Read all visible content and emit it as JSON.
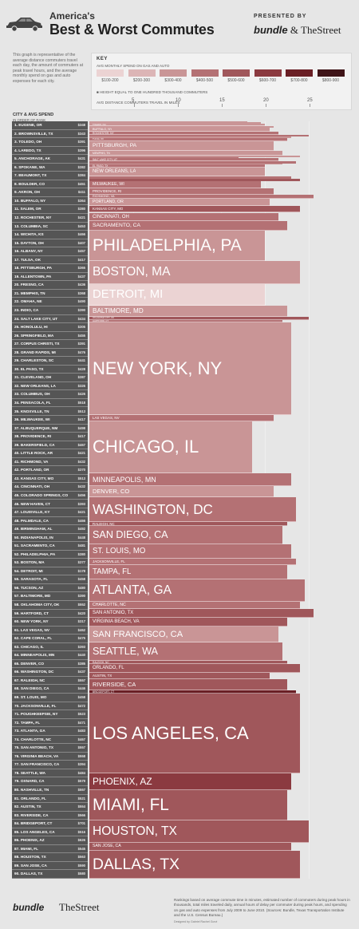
{
  "header": {
    "title_line1": "America's",
    "title_line2": "Best & Worst Commutes",
    "presented_by": "PRESENTED BY",
    "sponsor1": "bundle",
    "sponsor_amp": "&",
    "sponsor2": "TheStreet"
  },
  "description": "This graph is representative of the average distance commuters travel each day, the amount of commuters at peak travel hours, and the average monthly spend on gas and auto expenses for each city.",
  "key": {
    "heading": "KEY",
    "spend_label": "AVG MONTHLY SPEND ON GAS AND AUTO",
    "swatches": [
      {
        "label": "$100-200",
        "color": "#ebd3d3"
      },
      {
        "label": "$200-300",
        "color": "#dcb5b6"
      },
      {
        "label": "$300-400",
        "color": "#c99596"
      },
      {
        "label": "$400-500",
        "color": "#b47174"
      },
      {
        "label": "$500-600",
        "color": "#a0575b"
      },
      {
        "label": "$600-700",
        "color": "#8b3a40"
      },
      {
        "label": "$700-800",
        "color": "#6a1f25"
      },
      {
        "label": "$800-900",
        "color": "#3f1418"
      }
    ],
    "height_note": "HEIGHT EQUAL TO ONE HUNDRED THOUSAND COMMUTERS",
    "distance_note": "AVG DISTANCE COMMUTERS TRAVEL IN MILES",
    "ticks": [
      "5",
      "10",
      "15",
      "20",
      "25"
    ]
  },
  "list": {
    "heading": "CITY & AVG SPEND",
    "subheading": "IN ORDER OF RANK",
    "cities": [
      {
        "name": "1. EUGENE, OR",
        "spend": "$348"
      },
      {
        "name": "2. BROWNSVILLE, TX",
        "spend": "$343"
      },
      {
        "name": "3. TOLEDO, OH",
        "spend": "$391"
      },
      {
        "name": "4. LAREDO, TX",
        "spend": "$396"
      },
      {
        "name": "5. ANCHORAGE, AK",
        "spend": "$431"
      },
      {
        "name": "6. SPOKANE, WA",
        "spend": "$382"
      },
      {
        "name": "7. BEAUMONT, TX",
        "spend": "$384"
      },
      {
        "name": "8. BOULDER, CO",
        "spend": "$451"
      },
      {
        "name": "9. AKRON, OH",
        "spend": "$411"
      },
      {
        "name": "10. BUFFALO, NY",
        "spend": "$364"
      },
      {
        "name": "11. SALEM, OR",
        "spend": "$380"
      },
      {
        "name": "12. ROCHESTER, NY",
        "spend": "$421"
      },
      {
        "name": "13. COLUMBIA, SC",
        "spend": "$453"
      },
      {
        "name": "14. WICHITA, KS",
        "spend": "$466"
      },
      {
        "name": "15. DAYTON, OH",
        "spend": "$407"
      },
      {
        "name": "16. ALBANY, NY",
        "spend": "$457"
      },
      {
        "name": "17. TULSA, OK",
        "spend": "$417"
      },
      {
        "name": "18. PITTSBURGH, PA",
        "spend": "$365"
      },
      {
        "name": "19. ALLENTOWN, PA",
        "spend": "$437"
      },
      {
        "name": "20. FRESNO, CA",
        "spend": "$436"
      },
      {
        "name": "21. MEMPHIS, TN",
        "spend": "$368"
      },
      {
        "name": "22. OMAHA, NE",
        "spend": "$490"
      },
      {
        "name": "23. INDIO, CA",
        "spend": "$390"
      },
      {
        "name": "24. SALT LAKE CITY, UT",
        "spend": "$434"
      },
      {
        "name": "25. HONOLULU, HI",
        "spend": "$305"
      },
      {
        "name": "26. SPRINGFIELD, MA",
        "spend": "$455"
      },
      {
        "name": "27. CORPUS CHRISTI, TX",
        "spend": "$391"
      },
      {
        "name": "28. GRAND RAPIDS, MI",
        "spend": "$476"
      },
      {
        "name": "29. CHARLESTON, SC",
        "spend": "$441"
      },
      {
        "name": "30. EL PASO, TX",
        "spend": "$428"
      },
      {
        "name": "31. CLEVELAND, OH",
        "spend": "$387"
      },
      {
        "name": "32. NEW ORLEANS, LA",
        "spend": "$326"
      },
      {
        "name": "33. COLUMBUS, OH",
        "spend": "$426"
      },
      {
        "name": "34. PENSACOLA, FL",
        "spend": "$518"
      },
      {
        "name": "35. KNOXVILLE, TN",
        "spend": "$513"
      },
      {
        "name": "36. MILWAUKEE, WI",
        "spend": "$417"
      },
      {
        "name": "37. ALBUQUERQUE, NM",
        "spend": "$498"
      },
      {
        "name": "38. PROVIDENCE, RI",
        "spend": "$417"
      },
      {
        "name": "39. BAKERSFIELD, CA",
        "spend": "$467"
      },
      {
        "name": "40. LITTLE ROCK, AR",
        "spend": "$421"
      },
      {
        "name": "41. RICHMOND, VA",
        "spend": "$432"
      },
      {
        "name": "42. PORTLAND, OR",
        "spend": "$370"
      },
      {
        "name": "43. KANSAS CITY, MO",
        "spend": "$513"
      },
      {
        "name": "44. CINCINNATI, OH",
        "spend": "$432"
      },
      {
        "name": "45. COLORADO SPRINGS, CO",
        "spend": "$456"
      },
      {
        "name": "46. NEW HAVEN, CT",
        "spend": "$393"
      },
      {
        "name": "47. LOUISVILLE, KY",
        "spend": "$421"
      },
      {
        "name": "48. PALMDALE, CA",
        "spend": "$466"
      },
      {
        "name": "49. BIRMINGHAM, AL",
        "spend": "$492"
      },
      {
        "name": "50. INDIANAPOLIS, IN",
        "spend": "$448"
      },
      {
        "name": "51. SACRAMENTO, CA",
        "spend": "$481"
      },
      {
        "name": "52. PHILADELPHIA, PA",
        "spend": "$380"
      },
      {
        "name": "53. BOSTON, MA",
        "spend": "$377"
      },
      {
        "name": "54. DETROIT, MI",
        "spend": "$178"
      },
      {
        "name": "55. SARASOTA, FL",
        "spend": "$458"
      },
      {
        "name": "56. TUCSON, AZ",
        "spend": "$480"
      },
      {
        "name": "57. BALTIMORE, MD",
        "spend": "$390"
      },
      {
        "name": "58. OKLAHOMA CITY, OK",
        "spend": "$552"
      },
      {
        "name": "59. HARTFORD, CT",
        "spend": "$420"
      },
      {
        "name": "60. NEW YORK, NY",
        "spend": "$317"
      },
      {
        "name": "61. LAS VEGAS, NV",
        "spend": "$462"
      },
      {
        "name": "62. CAPE CORAL, FL",
        "spend": "$475"
      },
      {
        "name": "63. CHICAGO, IL",
        "spend": "$393"
      },
      {
        "name": "64. MINNEAPOLIS, MN",
        "spend": "$440"
      },
      {
        "name": "65. DENVER, CO",
        "spend": "$385"
      },
      {
        "name": "66. WASHINGTON, DC",
        "spend": "$437"
      },
      {
        "name": "67. RALEIGH, NC",
        "spend": "$557"
      },
      {
        "name": "68. SAN DIEGO, CA",
        "spend": "$446"
      },
      {
        "name": "69. ST. LOUIS, MO",
        "spend": "$458"
      },
      {
        "name": "70. JACKSONVILLE, FL",
        "spend": "$472"
      },
      {
        "name": "71. POUGHKEEPSIE, NY",
        "spend": "$523"
      },
      {
        "name": "72. TAMPA, FL",
        "spend": "$471"
      },
      {
        "name": "73. ATLANTA, GA",
        "spend": "$483"
      },
      {
        "name": "74. CHARLOTTE, NC",
        "spend": "$467"
      },
      {
        "name": "75. SAN ANTONIO, TX",
        "spend": "$557"
      },
      {
        "name": "76. VIRGINIA BEACH, VA",
        "spend": "$558"
      },
      {
        "name": "77. SAN FRANCISCO, CA",
        "spend": "$394"
      },
      {
        "name": "78. SEATTLE, WA",
        "spend": "$484"
      },
      {
        "name": "79. OXNARD, CA",
        "spend": "$579"
      },
      {
        "name": "80. NASHVILLE, TN",
        "spend": "$557"
      },
      {
        "name": "81. ORLANDO, FL",
        "spend": "$521"
      },
      {
        "name": "82. AUSTIN, TX",
        "spend": "$554"
      },
      {
        "name": "83. RIVERSIDE, CA",
        "spend": "$566"
      },
      {
        "name": "84. BRIDGEPORT, CT",
        "spend": "$701"
      },
      {
        "name": "85. LOS ANGELES, CA",
        "spend": "$516"
      },
      {
        "name": "86. PHOENIX, AZ",
        "spend": "$626"
      },
      {
        "name": "87. MIAMI, FL",
        "spend": "$545"
      },
      {
        "name": "88. HOUSTON, TX",
        "spend": "$563"
      },
      {
        "name": "89. SAN JOSE, CA",
        "spend": "$590"
      },
      {
        "name": "90. DALLAS, TX",
        "spend": "$580"
      }
    ]
  },
  "chart_data": {
    "type": "bar",
    "orientation": "horizontal",
    "x_axis_label": "AVG DISTANCE COMMUTERS TRAVEL IN MILES",
    "x_range": [
      0,
      30
    ],
    "x_ticks": [
      5,
      10,
      15,
      20,
      25
    ],
    "height_unit": "one hundred thousand commuters",
    "series": [
      {
        "city": "EUGENE, OR",
        "miles": 18.0,
        "commuters_100k": 0.1,
        "spend": 348
      },
      {
        "city": "BROWNSVILLE, TX",
        "miles": 19.5,
        "commuters_100k": 0.12,
        "spend": 343
      },
      {
        "city": "TOLEDO, OH",
        "miles": 20.0,
        "commuters_100k": 0.25,
        "spend": 391
      },
      {
        "city": "LAREDO, TX",
        "miles": 21.0,
        "commuters_100k": 0.15,
        "spend": 396
      },
      {
        "city": "BUFFALO, NY",
        "miles": 20.5,
        "commuters_100k": 0.35,
        "spend": 364
      },
      {
        "city": "ROCHESTER, NY",
        "miles": 21.5,
        "commuters_100k": 0.3,
        "spend": 421
      },
      {
        "city": "ANCHORAGE, AK",
        "miles": 25.0,
        "commuters_100k": 0.12,
        "spend": 431
      },
      {
        "city": "SPOKANE, WA",
        "miles": 23.0,
        "commuters_100k": 0.2,
        "spend": 382
      },
      {
        "city": "TULSA, OK",
        "miles": 22.5,
        "commuters_100k": 0.25,
        "spend": 417
      },
      {
        "city": "PITTSBURGH, PA",
        "miles": 21.0,
        "commuters_100k": 0.9,
        "spend": 365
      },
      {
        "city": "MEMPHIS, TN",
        "miles": 22.0,
        "commuters_100k": 0.45,
        "spend": 368
      },
      {
        "city": "BEAUMONT, TX",
        "miles": 24.0,
        "commuters_100k": 0.12,
        "spend": 384
      },
      {
        "city": "BOULDER, CO",
        "miles": 17.0,
        "commuters_100k": 0.1,
        "spend": 451
      },
      {
        "city": "SALT LAKE CITY, UT",
        "miles": 21.5,
        "commuters_100k": 0.3,
        "spend": 434
      },
      {
        "city": "AKRON, OH",
        "miles": 23.5,
        "commuters_100k": 0.2,
        "spend": 411
      },
      {
        "city": "SALEM, OR",
        "miles": 22.0,
        "commuters_100k": 0.12,
        "spend": 380
      },
      {
        "city": "EL PASO, TX",
        "miles": 20.0,
        "commuters_100k": 0.3,
        "spend": 428
      },
      {
        "city": "NEW ORLEANS, LA",
        "miles": 20.0,
        "commuters_100k": 0.8,
        "spend": 326
      },
      {
        "city": "COLUMBIA, SC",
        "miles": 23.0,
        "commuters_100k": 0.2,
        "spend": 453
      },
      {
        "city": "PENSACOLA, FL",
        "miles": 24.0,
        "commuters_100k": 0.2,
        "spend": 518
      },
      {
        "city": "MILWAUKEE, WI",
        "miles": 19.5,
        "commuters_100k": 0.7,
        "spend": 417
      },
      {
        "city": "PROVIDENCE, RI",
        "miles": 21.0,
        "commuters_100k": 0.6,
        "spend": 417
      },
      {
        "city": "RICHMOND, VA",
        "miles": 25.5,
        "commuters_100k": 0.35,
        "spend": 432
      },
      {
        "city": "PORTLAND, OR",
        "miles": 20.5,
        "commuters_100k": 0.7,
        "spend": 370
      },
      {
        "city": "KANSAS CITY, MO",
        "miles": 24.0,
        "commuters_100k": 0.6,
        "spend": 513
      },
      {
        "city": "CINCINNATI, OH",
        "miles": 21.5,
        "commuters_100k": 0.8,
        "spend": 432
      },
      {
        "city": "SACRAMENTO, CA",
        "miles": 22.5,
        "commuters_100k": 0.9,
        "spend": 481
      },
      {
        "city": "PHILADELPHIA, PA",
        "miles": 20.0,
        "commuters_100k": 2.8,
        "spend": 380
      },
      {
        "city": "BOSTON, MA",
        "miles": 24.0,
        "commuters_100k": 2.1,
        "spend": 377
      },
      {
        "city": "DETROIT, MI",
        "miles": 20.0,
        "commuters_100k": 2.0,
        "spend": 178
      },
      {
        "city": "BALTIMORE, MD",
        "miles": 22.5,
        "commuters_100k": 1.1,
        "spend": 390
      },
      {
        "city": "OKLAHOMA CITY, OK",
        "miles": 25.0,
        "commuters_100k": 0.25,
        "spend": 552
      },
      {
        "city": "HARTFORD, CT",
        "miles": 22.0,
        "commuters_100k": 0.25,
        "spend": 420
      },
      {
        "city": "NEW YORK, NY",
        "miles": 23.0,
        "commuters_100k": 8.6,
        "spend": 317
      },
      {
        "city": "LAS VEGAS, NV",
        "miles": 21.0,
        "commuters_100k": 0.6,
        "spend": 462
      },
      {
        "city": "CHICAGO, IL",
        "miles": 18.5,
        "commuters_100k": 4.8,
        "spend": 393
      },
      {
        "city": "MINNEAPOLIS, MN",
        "miles": 23.0,
        "commuters_100k": 1.2,
        "spend": 440
      },
      {
        "city": "DENVER, CO",
        "miles": 21.0,
        "commuters_100k": 1.0,
        "spend": 385
      },
      {
        "city": "WASHINGTON, DC",
        "miles": 23.5,
        "commuters_100k": 2.3,
        "spend": 437
      },
      {
        "city": "RALEIGH, NC",
        "miles": 22.5,
        "commuters_100k": 0.4,
        "spend": 557
      },
      {
        "city": "SAN DIEGO, CA",
        "miles": 22.0,
        "commuters_100k": 1.7,
        "spend": 446
      },
      {
        "city": "ST. LOUIS, MO",
        "miles": 23.0,
        "commuters_100k": 1.3,
        "spend": 458
      },
      {
        "city": "JACKSONVILLE, FL",
        "miles": 23.5,
        "commuters_100k": 0.6,
        "spend": 472
      },
      {
        "city": "TAMPA, FL",
        "miles": 22.5,
        "commuters_100k": 1.3,
        "spend": 471
      },
      {
        "city": "ATLANTA, GA",
        "miles": 24.5,
        "commuters_100k": 2.1,
        "spend": 483
      },
      {
        "city": "CHARLOTTE, NC",
        "miles": 24.0,
        "commuters_100k": 0.7,
        "spend": 467
      },
      {
        "city": "SAN ANTONIO, TX",
        "miles": 25.5,
        "commuters_100k": 0.8,
        "spend": 557
      },
      {
        "city": "VIRGINIA BEACH, VA",
        "miles": 22.5,
        "commuters_100k": 0.8,
        "spend": 558
      },
      {
        "city": "SAN FRANCISCO, CA",
        "miles": 21.5,
        "commuters_100k": 1.5,
        "spend": 394
      },
      {
        "city": "SEATTLE, WA",
        "miles": 22.0,
        "commuters_100k": 1.7,
        "spend": 484
      },
      {
        "city": "RALEIGH, NC",
        "miles": 22.5,
        "commuters_100k": 0.3,
        "spend": 557
      },
      {
        "city": "ORLANDO, FL",
        "miles": 24.0,
        "commuters_100k": 0.8,
        "spend": 521
      },
      {
        "city": "AUSTIN, TX",
        "miles": 20.5,
        "commuters_100k": 0.6,
        "spend": 554
      },
      {
        "city": "RIVERSIDE, CA",
        "miles": 22.5,
        "commuters_100k": 1.0,
        "spend": 566
      },
      {
        "city": "BRIDGEPORT, CT",
        "miles": 23.5,
        "commuters_100k": 0.3,
        "spend": 701
      },
      {
        "city": "LOS ANGELES, CA",
        "miles": 24.0,
        "commuters_100k": 7.4,
        "spend": 516
      },
      {
        "city": "PHOENIX, AZ",
        "miles": 23.0,
        "commuters_100k": 1.6,
        "spend": 626
      },
      {
        "city": "MIAMI, FL",
        "miles": 22.5,
        "commuters_100k": 2.8,
        "spend": 545
      },
      {
        "city": "HOUSTON, TX",
        "miles": 25.0,
        "commuters_100k": 2.1,
        "spend": 563
      },
      {
        "city": "SAN JOSE, CA",
        "miles": 23.0,
        "commuters_100k": 0.7,
        "spend": 590
      },
      {
        "city": "DALLAS, TX",
        "miles": 24.0,
        "commuters_100k": 2.6,
        "spend": 580
      }
    ]
  },
  "footer": {
    "logo1": "bundle",
    "logo2": "TheStreet",
    "note": "Rankings based on average commute time in minutes, estimated number of commuters during peak hours in thousands, total miles traveled daily, annual hours of delay per commuter during peak hours, and spending on gas and auto expenses from July 2009 to June 2010. (Sources: Bundle, Texas Transportation Institute and the U.S. Census Bureau.)",
    "credit": "Designed by Gabriel Rachel Gorvi"
  }
}
